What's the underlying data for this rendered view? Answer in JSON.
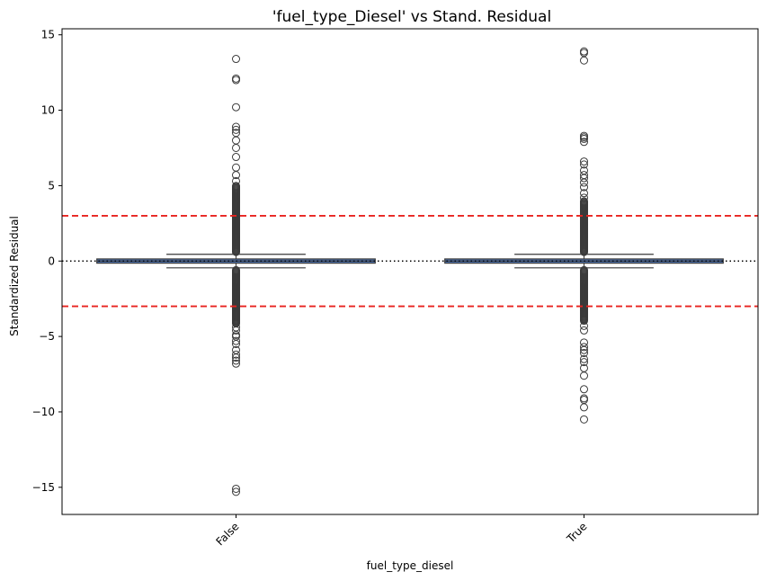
{
  "chart_data": {
    "type": "box",
    "title": "'fuel_type_Diesel' vs Stand. Residual",
    "xlabel": "fuel_type_diesel",
    "ylabel": "Standardized Residual",
    "categories": [
      "False",
      "True"
    ],
    "ylim": [
      -16.8,
      15.4
    ],
    "yticks": [
      -15,
      -10,
      -5,
      0,
      5,
      10,
      15
    ],
    "box_color": "#4c72b0",
    "box_edge_color": "#3a3a3a",
    "reference_lines": [
      {
        "y": 0,
        "style": "dotted",
        "color": "#000000"
      },
      {
        "y": 3,
        "style": "dashed",
        "color": "#e8231f"
      },
      {
        "y": -3,
        "style": "dashed",
        "color": "#e8231f"
      }
    ],
    "boxes": [
      {
        "category": "False",
        "q1": -0.05,
        "median": 0.0,
        "q3": 0.05,
        "whisker_low": -0.45,
        "whisker_high": 0.45,
        "outlier_runs": [
          [
            0.6,
            5.0,
            0.06
          ],
          [
            -0.6,
            -4.2,
            0.06
          ]
        ],
        "outliers": [
          13.4,
          12.1,
          12.0,
          10.2,
          8.9,
          8.7,
          8.5,
          8.0,
          7.5,
          6.9,
          6.2,
          5.7,
          5.3,
          -4.4,
          -4.6,
          -4.9,
          -5.0,
          -5.3,
          -5.5,
          -5.9,
          -6.2,
          -6.4,
          -6.6,
          -6.8,
          -15.1,
          -15.3
        ]
      },
      {
        "category": "True",
        "q1": -0.05,
        "median": 0.0,
        "q3": 0.05,
        "whisker_low": -0.45,
        "whisker_high": 0.45,
        "outlier_runs": [
          [
            0.6,
            4.0,
            0.06
          ],
          [
            -0.6,
            -4.0,
            0.06
          ]
        ],
        "outliers": [
          13.9,
          13.8,
          13.3,
          8.3,
          8.2,
          8.1,
          7.9,
          6.6,
          6.4,
          6.0,
          5.7,
          5.5,
          5.2,
          4.9,
          4.5,
          4.2,
          -4.3,
          -4.6,
          -5.4,
          -5.7,
          -5.9,
          -6.1,
          -6.5,
          -6.7,
          -7.1,
          -7.6,
          -8.5,
          -9.1,
          -9.2,
          -9.7,
          -10.5
        ]
      }
    ]
  }
}
